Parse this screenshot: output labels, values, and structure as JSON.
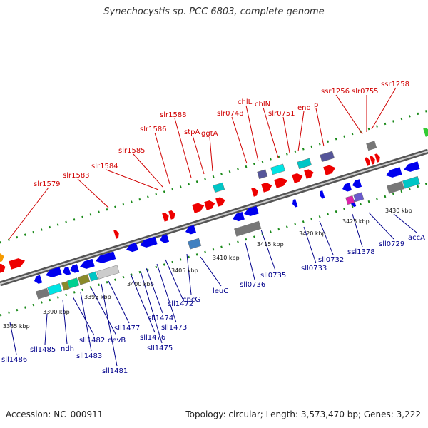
{
  "title": "Synechocystis sp. PCC 6803, complete genome",
  "footer": {
    "accession": "Accession: NC_000911",
    "summary": "Topology: circular; Length: 3,573,470 bp; Genes: 3,222"
  },
  "top_labels": [
    "slr1579",
    "slr1583",
    "slr1584",
    "slr1585",
    "slr1586",
    "slr1588",
    "stpA",
    "ggtA",
    "slr0748",
    "chlL",
    "chlN",
    "slr0751",
    "eno",
    "p",
    "ssr1256",
    "slr0755",
    "ssr1258"
  ],
  "bottom_labels": [
    "sll1486",
    "sll1485",
    "ndh",
    "sll1482",
    "sll1483",
    "devB",
    "sll1481",
    "sll1477",
    "sll1476",
    "sll1475",
    "sll1474",
    "sll1473",
    "sll1472",
    "cpcG",
    "leuC",
    "sll0736",
    "sll0735",
    "sll0733",
    "sll0732",
    "ssl1378",
    "sll0729",
    "accA"
  ],
  "kbp_labels": [
    "3385 kbp",
    "3390 kbp",
    "3395 kbp",
    "3400 kbp",
    "3405 kbp",
    "3410 kbp",
    "3415 kbp",
    "3420 kbp",
    "3425 kbp",
    "3430 kbp"
  ]
}
